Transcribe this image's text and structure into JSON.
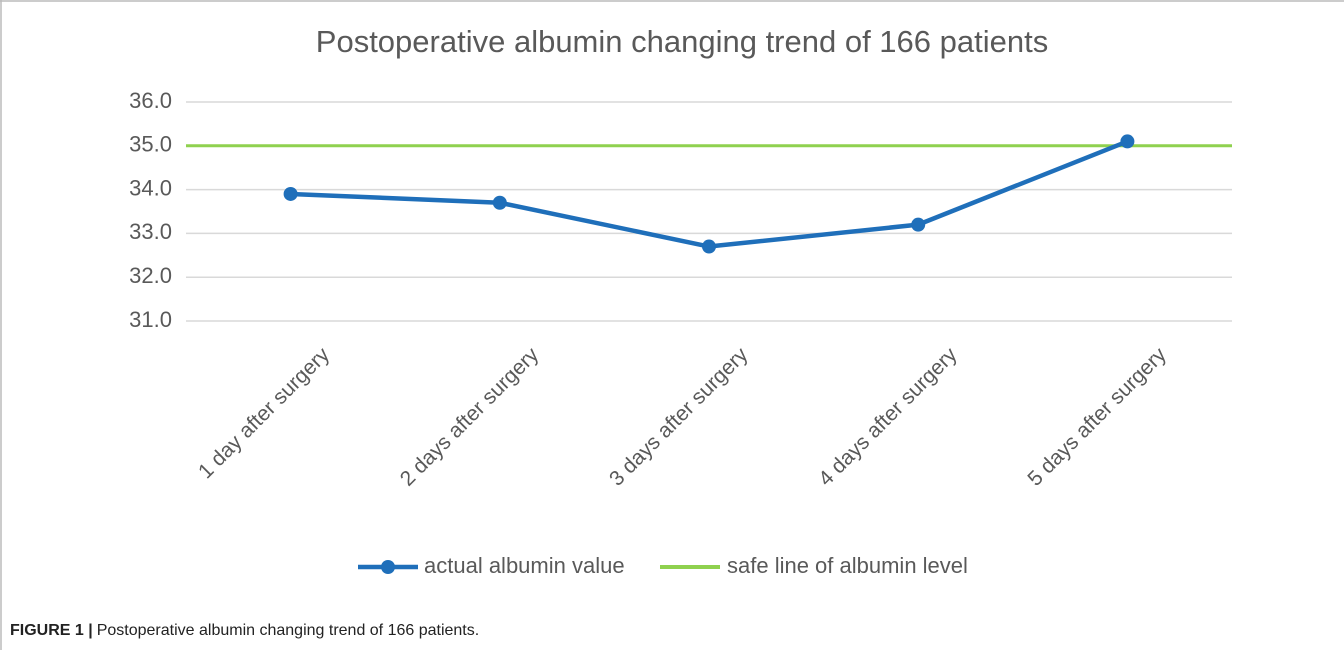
{
  "chart_data": {
    "type": "line",
    "title": "Postoperative albumin changing trend of 166 patients",
    "categories": [
      "1 day after surgery",
      "2 days after surgery",
      "3 days after surgery",
      "4 days after surgery",
      "5 days after surgery"
    ],
    "series": [
      {
        "name": "actual albumin value",
        "color": "#1f6fba",
        "values": [
          33.9,
          33.7,
          32.7,
          33.2,
          35.1
        ]
      }
    ],
    "reference_line": {
      "name": "safe line of albumin level",
      "color": "#8fd14f",
      "value": 35
    },
    "ylim": [
      31,
      36
    ],
    "yticks": [
      {
        "value": 31,
        "label": "31.0"
      },
      {
        "value": 32,
        "label": "32.0"
      },
      {
        "value": 33,
        "label": "33.0"
      },
      {
        "value": 34,
        "label": "34.0"
      },
      {
        "value": 35,
        "label": "35.0"
      },
      {
        "value": 36,
        "label": "36.0"
      }
    ],
    "grid": true,
    "legend": "bottom"
  },
  "caption": {
    "label": "FIGURE 1 |",
    "text": "Postoperative albumin changing trend of 166 patients."
  }
}
